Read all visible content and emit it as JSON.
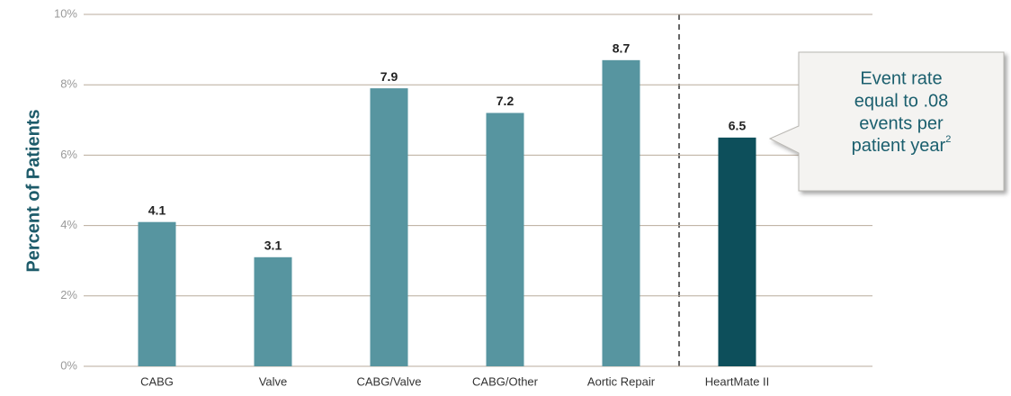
{
  "chart_data": {
    "type": "bar",
    "y_label": "Percent of Patients",
    "categories": [
      "CABG",
      "Valve",
      "CABG/Valve",
      "CABG/Other",
      "Aortic Repair",
      "HeartMate II"
    ],
    "values": [
      4.1,
      3.1,
      7.9,
      7.2,
      8.7,
      6.5
    ],
    "colors": [
      "#5795a0",
      "#5795a0",
      "#5795a0",
      "#5795a0",
      "#5795a0",
      "#0d4f5b"
    ],
    "ylim": [
      0,
      10
    ],
    "yticks": [
      {
        "value": 0,
        "label": "0%"
      },
      {
        "value": 2,
        "label": "2%"
      },
      {
        "value": 4,
        "label": "4%"
      },
      {
        "value": 6,
        "label": "6%"
      },
      {
        "value": 8,
        "label": "8%"
      },
      {
        "value": 10,
        "label": "10%"
      }
    ],
    "grid": true,
    "annotation": {
      "lines": [
        "Event rate",
        "equal to .08",
        "events per",
        "patient year"
      ],
      "superscript": "2"
    }
  }
}
